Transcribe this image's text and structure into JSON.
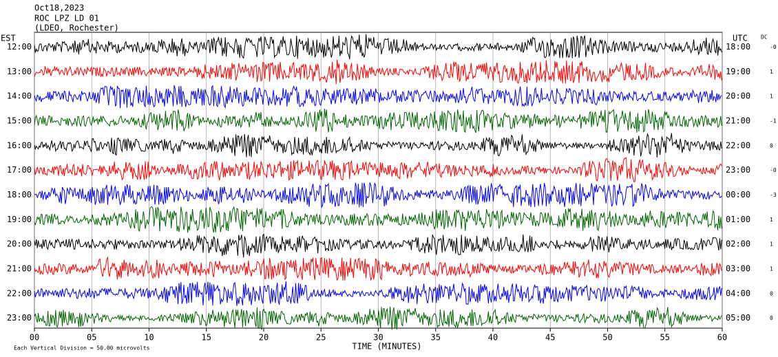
{
  "chart_data": {
    "type": "helicorder",
    "title_lines": [
      "Oct18,2023",
      "ROC LPZ LD 01",
      "(LDEO, Rochester)"
    ],
    "left_axis_label": "EST",
    "right_axis_label": "UTC",
    "dc_label": "DC",
    "xlabel": "TIME (MINUTES)",
    "footnote": "Each Vertical Division =   50.00 microvolts",
    "xlim": [
      0,
      60
    ],
    "xticks": [
      {
        "value": 0,
        "label": "00"
      },
      {
        "value": 5,
        "label": "05"
      },
      10,
      15,
      20,
      25,
      30,
      35,
      40,
      45,
      50,
      55,
      60
    ],
    "grid": true,
    "rows": [
      {
        "est": "12:00",
        "utc": "18:00",
        "dc": "-0",
        "color": "#000000"
      },
      {
        "est": "13:00",
        "utc": "19:00",
        "dc": "1",
        "color": "#ff0000"
      },
      {
        "est": "14:00",
        "utc": "20:00",
        "dc": "1",
        "color": "#0000ff"
      },
      {
        "est": "15:00",
        "utc": "21:00",
        "dc": "-1",
        "color": "#006400"
      },
      {
        "est": "16:00",
        "utc": "22:00",
        "dc": "0",
        "color": "#000000"
      },
      {
        "est": "17:00",
        "utc": "23:00",
        "dc": "-0",
        "color": "#ff0000"
      },
      {
        "est": "18:00",
        "utc": "00:00",
        "dc": "-3",
        "color": "#0000ff"
      },
      {
        "est": "19:00",
        "utc": "01:00",
        "dc": "1",
        "color": "#006400"
      },
      {
        "est": "20:00",
        "utc": "02:00",
        "dc": "1",
        "color": "#000000"
      },
      {
        "est": "21:00",
        "utc": "03:00",
        "dc": "1",
        "color": "#ff0000"
      },
      {
        "est": "22:00",
        "utc": "04:00",
        "dc": "0",
        "color": "#0000ff"
      },
      {
        "est": "23:00",
        "utc": "05:00",
        "dc": "0",
        "color": "#006400"
      }
    ]
  }
}
